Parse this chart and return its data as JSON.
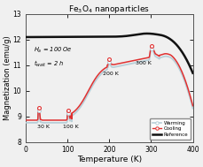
{
  "title": "Fe$_3$O$_4$ nanoparticles",
  "xlabel": "Temperature (K)",
  "ylabel": "Magnetization (emu/g)",
  "ylim": [
    8,
    13
  ],
  "xlim": [
    0,
    400
  ],
  "yticks": [
    8,
    9,
    10,
    11,
    12,
    13
  ],
  "xticks": [
    0,
    100,
    200,
    300,
    400
  ],
  "param_text1": "$H_{a}$ = 100 Oe",
  "param_text2": "$t_{wait}$ = 2 h",
  "legend_labels": [
    "Warming",
    "Cooling",
    "Reference"
  ],
  "ref_color": "#111111",
  "warming_color": "#b8cfd8",
  "cooling_color": "#e03030",
  "background_color": "#f0f0f0",
  "stop_temps": [
    30,
    100,
    200,
    300
  ],
  "ann_30k": [
    27,
    8.53
  ],
  "ann_100k": [
    88,
    8.53
  ],
  "ann_200k": [
    185,
    10.6
  ],
  "ann_300k": [
    263,
    11.02
  ]
}
